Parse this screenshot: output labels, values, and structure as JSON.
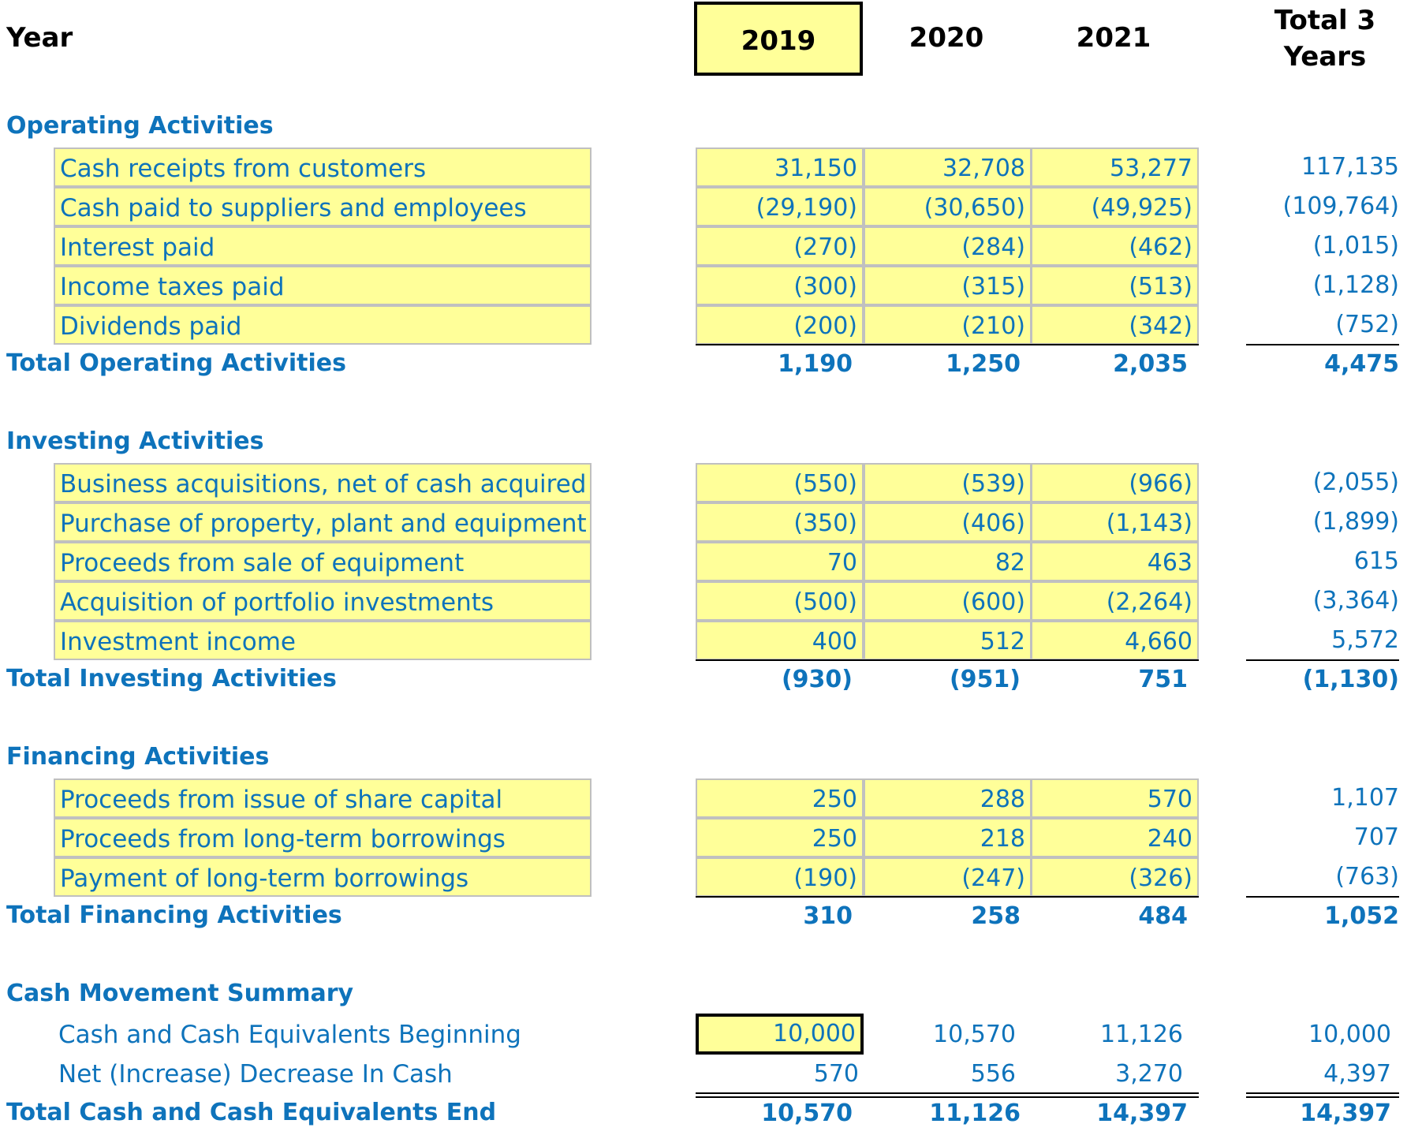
{
  "header": {
    "year_label": "Year",
    "years": [
      "2019",
      "2020",
      "2021"
    ],
    "total_label_line1": "Total 3",
    "total_label_line2": "Years"
  },
  "operating": {
    "title": "Operating Activities",
    "rows": [
      {
        "label": "Cash receipts from customers",
        "v2019": "31,150",
        "v2020": "32,708",
        "v2021": "53,277",
        "total": "117,135"
      },
      {
        "label": "Cash paid to suppliers and employees",
        "v2019": "(29,190)",
        "v2020": "(30,650)",
        "v2021": "(49,925)",
        "total": "(109,764)"
      },
      {
        "label": "Interest paid",
        "v2019": "(270)",
        "v2020": "(284)",
        "v2021": "(462)",
        "total": "(1,015)"
      },
      {
        "label": "Income taxes paid",
        "v2019": "(300)",
        "v2020": "(315)",
        "v2021": "(513)",
        "total": "(1,128)"
      },
      {
        "label": "Dividends paid",
        "v2019": "(200)",
        "v2020": "(210)",
        "v2021": "(342)",
        "total": "(752)"
      }
    ],
    "total": {
      "label": "Total Operating Activities",
      "v2019": "1,190",
      "v2020": "1,250",
      "v2021": "2,035",
      "total": "4,475"
    }
  },
  "investing": {
    "title": "Investing Activities",
    "rows": [
      {
        "label": "Business acquisitions, net of cash acquired",
        "v2019": "(550)",
        "v2020": "(539)",
        "v2021": "(966)",
        "total": "(2,055)"
      },
      {
        "label": "Purchase of property, plant and equipment",
        "v2019": "(350)",
        "v2020": "(406)",
        "v2021": "(1,143)",
        "total": "(1,899)"
      },
      {
        "label": "Proceeds from sale of equipment",
        "v2019": "70",
        "v2020": "82",
        "v2021": "463",
        "total": "615"
      },
      {
        "label": "Acquisition of portfolio investments",
        "v2019": "(500)",
        "v2020": "(600)",
        "v2021": "(2,264)",
        "total": "(3,364)"
      },
      {
        "label": "Investment income",
        "v2019": "400",
        "v2020": "512",
        "v2021": "4,660",
        "total": "5,572"
      }
    ],
    "total": {
      "label": "Total Investing Activities",
      "v2019": "(930)",
      "v2020": "(951)",
      "v2021": "751",
      "total": "(1,130)"
    }
  },
  "financing": {
    "title": "Financing Activities",
    "rows": [
      {
        "label": "Proceeds from issue of share capital",
        "v2019": "250",
        "v2020": "288",
        "v2021": "570",
        "total": "1,107"
      },
      {
        "label": "Proceeds from long-term borrowings",
        "v2019": "250",
        "v2020": "218",
        "v2021": "240",
        "total": "707"
      },
      {
        "label": "Payment of long-term borrowings",
        "v2019": "(190)",
        "v2020": "(247)",
        "v2021": "(326)",
        "total": "(763)"
      }
    ],
    "total": {
      "label": "Total Financing Activities",
      "v2019": "310",
      "v2020": "258",
      "v2021": "484",
      "total": "1,052"
    }
  },
  "summary": {
    "title": "Cash Movement Summary",
    "beginning": {
      "label": "Cash and Cash Equivalents Beginning",
      "v2019": "10,000",
      "v2020": "10,570",
      "v2021": "11,126",
      "total": "10,000"
    },
    "net": {
      "label": "Net (Increase) Decrease In Cash",
      "v2019": "570",
      "v2020": "556",
      "v2021": "3,270",
      "total": "4,397"
    },
    "end": {
      "label": "Total Cash and Cash Equivalents End",
      "v2019": "10,570",
      "v2020": "11,126",
      "v2021": "14,397",
      "total": "14,397"
    }
  }
}
